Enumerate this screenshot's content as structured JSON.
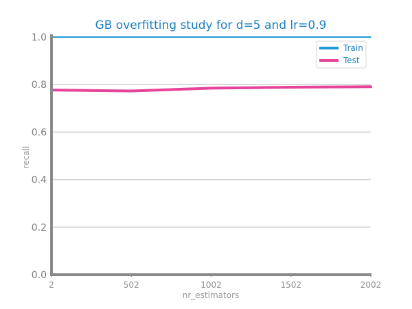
{
  "chart_data": {
    "type": "line",
    "title": "GB overfitting study for d=5 and lr=0.9",
    "xlabel": "nr_estimators",
    "ylabel": "recall",
    "x": [
      2,
      252,
      502,
      752,
      1002,
      1252,
      1502,
      1752,
      2002
    ],
    "xticks": [
      "2",
      "502",
      "1002",
      "1502",
      "2002"
    ],
    "xlim": [
      2,
      2002
    ],
    "yticks": [
      "0.0",
      "0.2",
      "0.4",
      "0.6",
      "0.8",
      "1.0"
    ],
    "ylim": [
      0,
      1
    ],
    "grid": "horizontal",
    "legend_position": "top-right",
    "series": [
      {
        "name": "Train",
        "color": "#1f9ad6",
        "values": [
          1.0,
          1.0,
          1.0,
          1.0,
          1.0,
          1.0,
          1.0,
          1.0,
          1.0
        ]
      },
      {
        "name": "Test",
        "color": "#e6449a",
        "values": [
          0.777,
          0.775,
          0.773,
          0.779,
          0.785,
          0.787,
          0.789,
          0.79,
          0.791
        ]
      }
    ]
  }
}
